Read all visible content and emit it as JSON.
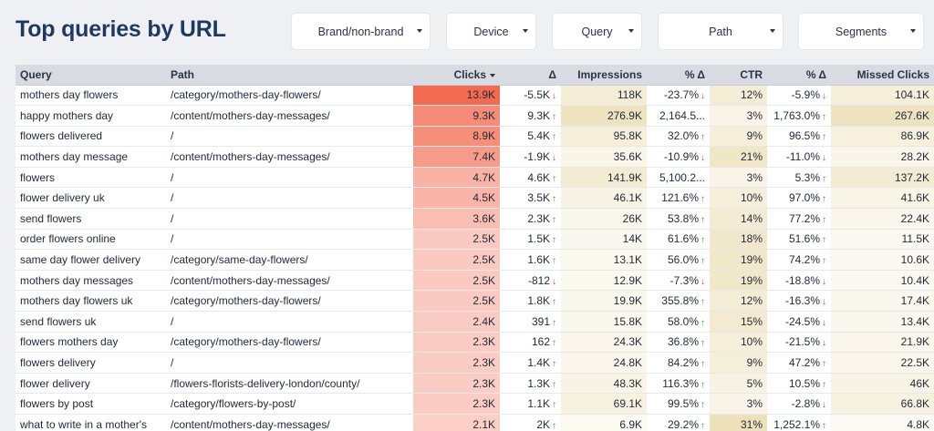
{
  "page": {
    "title": "Top queries by URL"
  },
  "filters": [
    {
      "label": "Brand/non-brand",
      "name": "brand-filter"
    },
    {
      "label": "Device",
      "name": "device-filter"
    },
    {
      "label": "Query",
      "name": "query-filter"
    },
    {
      "label": "Path",
      "name": "path-filter"
    },
    {
      "label": "Segments",
      "name": "segments-filter"
    }
  ],
  "table": {
    "headers": {
      "query": "Query",
      "path": "Path",
      "clicks": "Clicks",
      "clicks_delta": "Δ",
      "impressions": "Impressions",
      "impressions_delta": "% Δ",
      "ctr": "CTR",
      "ctr_delta": "% Δ",
      "missed_clicks": "Missed Clicks"
    },
    "sorted_by": "clicks",
    "colors": {
      "clicks_heat": "#f26a4f",
      "impressions_heat": "#e8d9a8",
      "ctr_heat": "#e8d9a8",
      "missed_heat": "#e8d9a8",
      "arrow_up": "#2f9e44",
      "arrow_down": "#e03131"
    },
    "rows": [
      {
        "query": "mothers day flowers",
        "path": "/category/mothers-day-flowers/",
        "clicks": "13.9K",
        "clicks_num": 13.9,
        "clicks_delta": "-5.5K",
        "clicks_dir": "down",
        "impressions": "118K",
        "impressions_num": 118,
        "impressions_delta": "-23.7%",
        "impressions_dir": "down",
        "ctr": "12%",
        "ctr_num": 12,
        "ctr_delta": "-5.9%",
        "ctr_dir": "down",
        "missed": "104.1K",
        "missed_num": 104.1
      },
      {
        "query": "happy mothers day",
        "path": "/content/mothers-day-messages/",
        "clicks": "9.3K",
        "clicks_num": 9.3,
        "clicks_delta": "9.3K",
        "clicks_dir": "up",
        "impressions": "276.9K",
        "impressions_num": 276.9,
        "impressions_delta": "2,164.5...",
        "impressions_dir": "",
        "ctr": "3%",
        "ctr_num": 3,
        "ctr_delta": "1,763.0%",
        "ctr_dir": "up",
        "missed": "267.6K",
        "missed_num": 267.6
      },
      {
        "query": "flowers delivered",
        "path": "/",
        "clicks": "8.9K",
        "clicks_num": 8.9,
        "clicks_delta": "5.4K",
        "clicks_dir": "up",
        "impressions": "95.8K",
        "impressions_num": 95.8,
        "impressions_delta": "32.0%",
        "impressions_dir": "up",
        "ctr": "9%",
        "ctr_num": 9,
        "ctr_delta": "96.5%",
        "ctr_dir": "up",
        "missed": "86.9K",
        "missed_num": 86.9
      },
      {
        "query": "mothers day message",
        "path": "/content/mothers-day-messages/",
        "clicks": "7.4K",
        "clicks_num": 7.4,
        "clicks_delta": "-1.9K",
        "clicks_dir": "down",
        "impressions": "35.6K",
        "impressions_num": 35.6,
        "impressions_delta": "-10.9%",
        "impressions_dir": "down",
        "ctr": "21%",
        "ctr_num": 21,
        "ctr_delta": "-11.0%",
        "ctr_dir": "down",
        "missed": "28.2K",
        "missed_num": 28.2
      },
      {
        "query": "flowers",
        "path": "/",
        "clicks": "4.7K",
        "clicks_num": 4.7,
        "clicks_delta": "4.6K",
        "clicks_dir": "up",
        "impressions": "141.9K",
        "impressions_num": 141.9,
        "impressions_delta": "5,100.2...",
        "impressions_dir": "",
        "ctr": "3%",
        "ctr_num": 3,
        "ctr_delta": "5.3%",
        "ctr_dir": "up",
        "missed": "137.2K",
        "missed_num": 137.2
      },
      {
        "query": "flower delivery uk",
        "path": "/",
        "clicks": "4.5K",
        "clicks_num": 4.5,
        "clicks_delta": "3.5K",
        "clicks_dir": "up",
        "impressions": "46.1K",
        "impressions_num": 46.1,
        "impressions_delta": "121.6%",
        "impressions_dir": "up",
        "ctr": "10%",
        "ctr_num": 10,
        "ctr_delta": "97.0%",
        "ctr_dir": "up",
        "missed": "41.6K",
        "missed_num": 41.6
      },
      {
        "query": "send flowers",
        "path": "/",
        "clicks": "3.6K",
        "clicks_num": 3.6,
        "clicks_delta": "2.3K",
        "clicks_dir": "up",
        "impressions": "26K",
        "impressions_num": 26,
        "impressions_delta": "53.8%",
        "impressions_dir": "up",
        "ctr": "14%",
        "ctr_num": 14,
        "ctr_delta": "77.2%",
        "ctr_dir": "up",
        "missed": "22.4K",
        "missed_num": 22.4
      },
      {
        "query": "order flowers online",
        "path": "/",
        "clicks": "2.5K",
        "clicks_num": 2.5,
        "clicks_delta": "1.5K",
        "clicks_dir": "up",
        "impressions": "14K",
        "impressions_num": 14,
        "impressions_delta": "61.6%",
        "impressions_dir": "up",
        "ctr": "18%",
        "ctr_num": 18,
        "ctr_delta": "51.6%",
        "ctr_dir": "up",
        "missed": "11.5K",
        "missed_num": 11.5
      },
      {
        "query": "same day flower delivery",
        "path": "/category/same-day-flowers/",
        "clicks": "2.5K",
        "clicks_num": 2.5,
        "clicks_delta": "1.6K",
        "clicks_dir": "up",
        "impressions": "13.1K",
        "impressions_num": 13.1,
        "impressions_delta": "56.0%",
        "impressions_dir": "up",
        "ctr": "19%",
        "ctr_num": 19,
        "ctr_delta": "74.2%",
        "ctr_dir": "up",
        "missed": "10.6K",
        "missed_num": 10.6
      },
      {
        "query": "mothers day messages",
        "path": "/content/mothers-day-messages/",
        "clicks": "2.5K",
        "clicks_num": 2.5,
        "clicks_delta": "-812",
        "clicks_dir": "down",
        "impressions": "12.9K",
        "impressions_num": 12.9,
        "impressions_delta": "-7.3%",
        "impressions_dir": "down",
        "ctr": "19%",
        "ctr_num": 19,
        "ctr_delta": "-18.8%",
        "ctr_dir": "down",
        "missed": "10.4K",
        "missed_num": 10.4
      },
      {
        "query": "mothers day flowers uk",
        "path": "/category/mothers-day-flowers/",
        "clicks": "2.5K",
        "clicks_num": 2.5,
        "clicks_delta": "1.8K",
        "clicks_dir": "up",
        "impressions": "19.9K",
        "impressions_num": 19.9,
        "impressions_delta": "355.8%",
        "impressions_dir": "up",
        "ctr": "12%",
        "ctr_num": 12,
        "ctr_delta": "-16.3%",
        "ctr_dir": "down",
        "missed": "17.4K",
        "missed_num": 17.4
      },
      {
        "query": "send flowers uk",
        "path": "/",
        "clicks": "2.4K",
        "clicks_num": 2.4,
        "clicks_delta": "391",
        "clicks_dir": "up",
        "impressions": "15.8K",
        "impressions_num": 15.8,
        "impressions_delta": "58.0%",
        "impressions_dir": "up",
        "ctr": "15%",
        "ctr_num": 15,
        "ctr_delta": "-24.5%",
        "ctr_dir": "down",
        "missed": "13.4K",
        "missed_num": 13.4
      },
      {
        "query": "flowers mothers day",
        "path": "/category/mothers-day-flowers/",
        "clicks": "2.3K",
        "clicks_num": 2.3,
        "clicks_delta": "162",
        "clicks_dir": "up",
        "impressions": "24.3K",
        "impressions_num": 24.3,
        "impressions_delta": "36.8%",
        "impressions_dir": "up",
        "ctr": "10%",
        "ctr_num": 10,
        "ctr_delta": "-21.5%",
        "ctr_dir": "down",
        "missed": "21.9K",
        "missed_num": 21.9
      },
      {
        "query": "flowers delivery",
        "path": "/",
        "clicks": "2.3K",
        "clicks_num": 2.3,
        "clicks_delta": "1.4K",
        "clicks_dir": "up",
        "impressions": "24.8K",
        "impressions_num": 24.8,
        "impressions_delta": "84.2%",
        "impressions_dir": "up",
        "ctr": "9%",
        "ctr_num": 9,
        "ctr_delta": "47.2%",
        "ctr_dir": "up",
        "missed": "22.5K",
        "missed_num": 22.5
      },
      {
        "query": "flower delivery",
        "path": "/flowers-florists-delivery-london/county/",
        "clicks": "2.3K",
        "clicks_num": 2.3,
        "clicks_delta": "1.3K",
        "clicks_dir": "up",
        "impressions": "48.3K",
        "impressions_num": 48.3,
        "impressions_delta": "116.3%",
        "impressions_dir": "up",
        "ctr": "5%",
        "ctr_num": 5,
        "ctr_delta": "10.5%",
        "ctr_dir": "up",
        "missed": "46K",
        "missed_num": 46
      },
      {
        "query": "flowers by post",
        "path": "/category/flowers-by-post/",
        "clicks": "2.3K",
        "clicks_num": 2.3,
        "clicks_delta": "1.1K",
        "clicks_dir": "up",
        "impressions": "69.1K",
        "impressions_num": 69.1,
        "impressions_delta": "99.5%",
        "impressions_dir": "up",
        "ctr": "3%",
        "ctr_num": 3,
        "ctr_delta": "-2.8%",
        "ctr_dir": "down",
        "missed": "66.8K",
        "missed_num": 66.8
      },
      {
        "query": "what to write in a mother's",
        "path": "/content/mothers-day-messages/",
        "clicks": "2.1K",
        "clicks_num": 2.1,
        "clicks_delta": "2K",
        "clicks_dir": "up",
        "impressions": "6.9K",
        "impressions_num": 6.9,
        "impressions_delta": "29.2%",
        "impressions_dir": "up",
        "ctr": "31%",
        "ctr_num": 31,
        "ctr_delta": "1,252.1%",
        "ctr_dir": "up",
        "missed": "4.8K",
        "missed_num": 4.8
      }
    ]
  }
}
